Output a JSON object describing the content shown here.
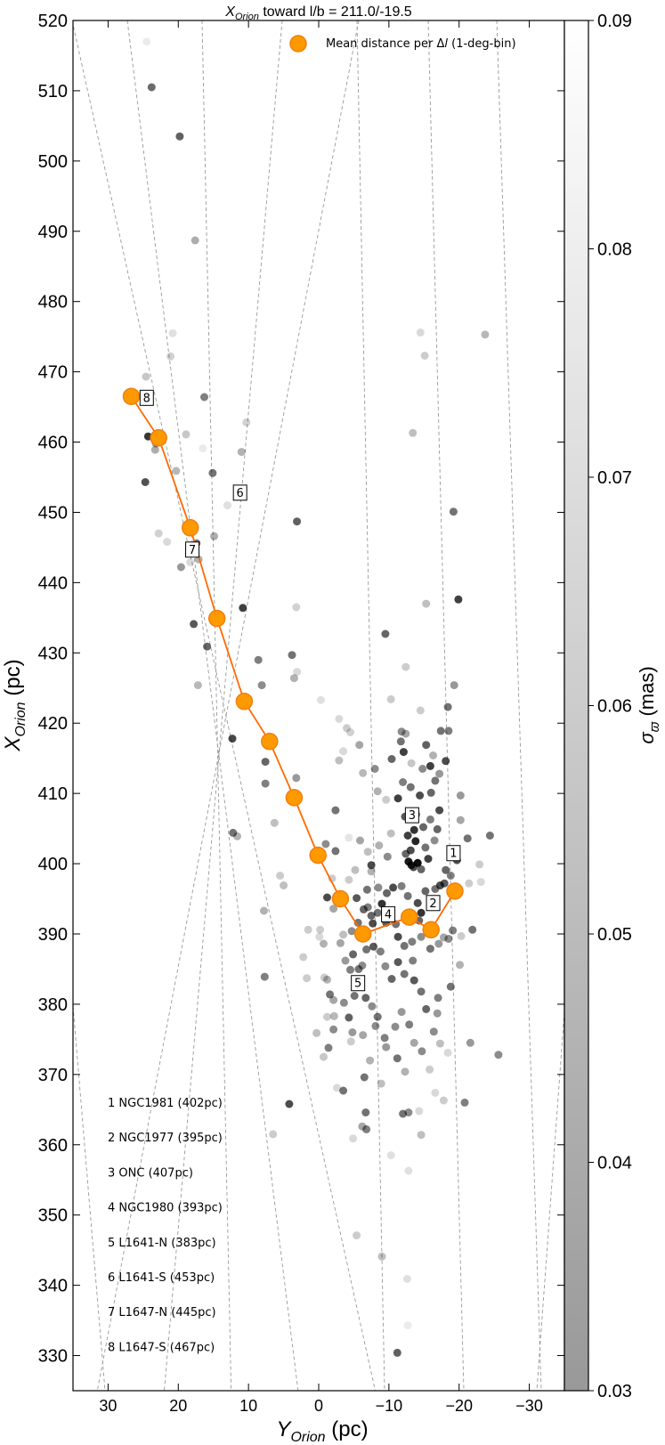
{
  "chart_data": {
    "type": "scatter",
    "title": {
      "main": "X",
      "sub": "Orion",
      "rest": " toward l/b = 211.0/-19.5"
    },
    "xlabel": {
      "main": "Y",
      "sub": "Orion",
      "rest": " (pc)"
    },
    "ylabel": {
      "main": "X",
      "sub": "Orion",
      "rest": " (pc)"
    },
    "xlim": [
      35,
      -35
    ],
    "ylim": [
      325,
      520
    ],
    "x_ticks": [
      30,
      20,
      10,
      0,
      -10,
      -20,
      -30
    ],
    "x_tick_labels": [
      "30",
      "20",
      "10",
      "0",
      "−10",
      "−20",
      "−30"
    ],
    "y_ticks": [
      330,
      340,
      350,
      360,
      370,
      380,
      390,
      400,
      410,
      420,
      430,
      440,
      450,
      460,
      470,
      480,
      490,
      500,
      510,
      520
    ],
    "y_tick_labels": [
      "330",
      "340",
      "350",
      "360",
      "370",
      "380",
      "390",
      "400",
      "410",
      "420",
      "430",
      "440",
      "450",
      "460",
      "470",
      "480",
      "490",
      "500",
      "510",
      "520"
    ],
    "colorbar": {
      "label": {
        "main": "σ",
        "sub": "ϖ",
        "rest": " (mas)"
      },
      "range": [
        0.03,
        0.09
      ],
      "ticks": [
        0.03,
        0.04,
        0.05,
        0.06,
        0.07,
        0.08,
        0.09
      ],
      "tick_labels": [
        "0.03",
        "0.04",
        "0.05",
        "0.06",
        "0.07",
        "0.08",
        "0.09"
      ]
    },
    "legend": {
      "label": {
        "pre": "Mean distance per Δ",
        "italic": "l",
        "post": " (1-deg-bin)"
      },
      "placement": "top-right",
      "color": "#ff9900",
      "edge": "#f08010"
    },
    "mean_line_color": "#ff6a00",
    "point_color": "#000000",
    "mean_distance_series": [
      {
        "x": 26.7,
        "y": 466.5
      },
      {
        "x": 22.8,
        "y": 460.6
      },
      {
        "x": 18.3,
        "y": 447.8
      },
      {
        "x": 14.5,
        "y": 434.9
      },
      {
        "x": 10.6,
        "y": 423.1
      },
      {
        "x": 7.0,
        "y": 417.4
      },
      {
        "x": 3.5,
        "y": 409.4
      },
      {
        "x": 0.1,
        "y": 401.2
      },
      {
        "x": -3.1,
        "y": 395.0
      },
      {
        "x": -6.3,
        "y": 390.0
      },
      {
        "x": -12.9,
        "y": 392.4
      },
      {
        "x": -16.0,
        "y": 390.6
      },
      {
        "x": -19.4,
        "y": 396.1
      }
    ],
    "region_markers": [
      {
        "label": "8",
        "x": 24.5,
        "y": 466.3
      },
      {
        "label": "6",
        "x": 11.2,
        "y": 452.8
      },
      {
        "label": "7",
        "x": 18.0,
        "y": 444.7
      },
      {
        "label": "3",
        "x": -13.3,
        "y": 406.9
      },
      {
        "label": "1",
        "x": -19.2,
        "y": 401.5
      },
      {
        "label": "2",
        "x": -16.3,
        "y": 394.4
      },
      {
        "label": "4",
        "x": -9.9,
        "y": 392.8
      },
      {
        "label": "5",
        "x": -5.6,
        "y": 383.0
      }
    ],
    "region_list": [
      "1 NGC1981 (402pc)",
      "2 NGC1977 (395pc)",
      "3 ONC (407pc)",
      "4 NGC1980 (393pc)",
      "5 L1641-N (383pc)",
      "6 L1641-S (453pc)",
      "7 L1647-N (445pc)",
      "8 L1647-S (467pc)"
    ],
    "stars": [
      [
        24.5,
        517,
        0.08
      ],
      [
        23.8,
        510.5,
        0.58
      ],
      [
        19.8,
        503.5,
        0.62
      ],
      [
        17.6,
        488.7,
        0.32
      ],
      [
        24.6,
        469.3,
        0.22
      ],
      [
        24.3,
        460.8,
        0.78
      ],
      [
        23.2,
        459.8,
        0.4
      ],
      [
        23.3,
        458.9,
        0.32
      ],
      [
        24.7,
        454.3,
        0.68
      ],
      [
        20.8,
        475.5,
        0.12
      ],
      [
        21.1,
        472.2,
        0.18
      ],
      [
        16.3,
        466.4,
        0.5
      ],
      [
        18.9,
        461.1,
        0.22
      ],
      [
        15.1,
        455.6,
        0.55
      ],
      [
        16.5,
        459.1,
        0.08
      ],
      [
        13.0,
        451.0,
        0.12
      ],
      [
        10.3,
        462.8,
        0.18
      ],
      [
        11.0,
        458.6,
        0.3
      ],
      [
        20.3,
        455.9,
        0.28
      ],
      [
        22.8,
        447.0,
        0.18
      ],
      [
        21.6,
        445.8,
        0.15
      ],
      [
        19.6,
        442.2,
        0.4
      ],
      [
        18.3,
        442.9,
        0.15
      ],
      [
        14.9,
        446.6,
        0.32
      ],
      [
        17.4,
        445.6,
        0.55
      ],
      [
        17.1,
        443.3,
        0.3
      ],
      [
        17.8,
        434.1,
        0.65
      ],
      [
        15.9,
        430.9,
        0.6
      ],
      [
        17.2,
        425.4,
        0.28
      ],
      [
        10.8,
        436.4,
        0.75
      ],
      [
        8.6,
        429.0,
        0.5
      ],
      [
        8.1,
        425.4,
        0.45
      ],
      [
        12.3,
        417.8,
        0.72
      ],
      [
        7.6,
        414.5,
        0.6
      ],
      [
        7.6,
        411.4,
        0.5
      ],
      [
        12.2,
        404.4,
        0.55
      ],
      [
        11.6,
        403.9,
        0.3
      ],
      [
        6.3,
        405.8,
        0.25
      ],
      [
        5.5,
        398.3,
        0.2
      ],
      [
        5.0,
        396.9,
        0.25
      ],
      [
        7.8,
        393.3,
        0.3
      ],
      [
        7.7,
        383.9,
        0.5
      ],
      [
        3.1,
        448.7,
        0.62
      ],
      [
        3.2,
        436.5,
        0.18
      ],
      [
        3.8,
        429.7,
        0.55
      ],
      [
        3.5,
        426.4,
        0.3
      ],
      [
        3.1,
        427.3,
        0.15
      ],
      [
        3.2,
        412.2,
        0.4
      ],
      [
        -0.3,
        423.3,
        0.12
      ],
      [
        -2.4,
        407.6,
        0.55
      ],
      [
        -2.9,
        420.6,
        0.15
      ],
      [
        -4.0,
        419.3,
        0.2
      ],
      [
        -2.9,
        414.7,
        0.25
      ],
      [
        -3.5,
        416.0,
        0.15
      ],
      [
        -1.0,
        402.8,
        0.45
      ],
      [
        -2.4,
        401.8,
        0.55
      ],
      [
        -1.2,
        395.2,
        0.7
      ],
      [
        -2.1,
        393.6,
        0.35
      ],
      [
        -0.2,
        390.6,
        0.2
      ],
      [
        -0.7,
        388.6,
        0.3
      ],
      [
        -0.1,
        389.6,
        0.15
      ],
      [
        -0.8,
        383.8,
        0.2
      ],
      [
        -1.2,
        383.5,
        0.3
      ],
      [
        -1.6,
        381.4,
        0.55
      ],
      [
        -2.2,
        378.3,
        0.28
      ],
      [
        -1.2,
        378.2,
        0.2
      ],
      [
        -2.1,
        376.4,
        0.45
      ],
      [
        -1.4,
        373.8,
        0.5
      ],
      [
        -0.7,
        372.5,
        0.22
      ],
      [
        -2.6,
        368.1,
        0.15
      ],
      [
        -3.5,
        367.7,
        0.55
      ],
      [
        4.2,
        365.8,
        0.7
      ],
      [
        6.5,
        361.5,
        0.2
      ],
      [
        -6.7,
        364.6,
        0.55
      ],
      [
        -6.2,
        362.6,
        0.35
      ],
      [
        -6.8,
        362.2,
        0.5
      ],
      [
        -4.9,
        360.9,
        0.15
      ],
      [
        -5.4,
        347.1,
        0.2
      ],
      [
        -9.0,
        344.1,
        0.25
      ],
      [
        -12.6,
        340.9,
        0.12
      ],
      [
        -12.7,
        334.3,
        0.08
      ],
      [
        -11.2,
        330.4,
        0.62
      ],
      [
        -9.5,
        432.7,
        0.6
      ],
      [
        -12.4,
        428.0,
        0.2
      ],
      [
        -10.3,
        423.4,
        0.2
      ],
      [
        -12.4,
        418.5,
        0.35
      ],
      [
        -11.8,
        418.8,
        0.45
      ],
      [
        -11.7,
        417.4,
        0.55
      ],
      [
        -12.1,
        415.9,
        0.75
      ],
      [
        -10.4,
        414.9,
        0.6
      ],
      [
        -8.0,
        413.5,
        0.45
      ],
      [
        -9.6,
        409.1,
        0.2
      ],
      [
        -8.4,
        410.3,
        0.3
      ],
      [
        -12.0,
        411.6,
        0.5
      ],
      [
        -11.3,
        409.3,
        0.75
      ],
      [
        -13.1,
        410.9,
        0.55
      ],
      [
        -14.4,
        409.7,
        0.7
      ],
      [
        -13.9,
        407.0,
        0.5
      ],
      [
        -12.3,
        406.7,
        0.65
      ],
      [
        -14.9,
        405.2,
        0.6
      ],
      [
        -13.6,
        404.8,
        0.8
      ],
      [
        -12.7,
        404.0,
        0.75
      ],
      [
        -13.8,
        403.2,
        0.85
      ],
      [
        -13.1,
        401.9,
        0.7
      ],
      [
        -12.4,
        401.4,
        0.6
      ],
      [
        -12.8,
        400.3,
        0.9
      ],
      [
        -13.2,
        399.8,
        0.85
      ],
      [
        -14.1,
        400.1,
        0.95
      ],
      [
        -13.5,
        399.5,
        0.7
      ],
      [
        -14.6,
        399.2,
        0.6
      ],
      [
        -15.2,
        402.3,
        0.55
      ],
      [
        -15.6,
        400.7,
        0.75
      ],
      [
        -16.5,
        403.3,
        0.45
      ],
      [
        -16.9,
        404.9,
        0.6
      ],
      [
        -15.9,
        406.3,
        0.5
      ],
      [
        -17.2,
        407.6,
        0.7
      ],
      [
        -16.0,
        410.1,
        0.6
      ],
      [
        -16.6,
        411.8,
        0.55
      ],
      [
        -17.2,
        412.8,
        0.4
      ],
      [
        -18.1,
        414.6,
        0.7
      ],
      [
        -17.4,
        418.9,
        0.55
      ],
      [
        -18.5,
        418.9,
        0.5
      ],
      [
        -18.4,
        422.3,
        0.55
      ],
      [
        -19.3,
        425.4,
        0.4
      ],
      [
        -15.3,
        416.9,
        0.62
      ],
      [
        -14.8,
        413.5,
        0.45
      ],
      [
        -16.3,
        415.4,
        0.3
      ],
      [
        -15.9,
        413.9,
        0.75
      ],
      [
        -13.2,
        414.3,
        0.22
      ],
      [
        -14.5,
        421.8,
        0.2
      ],
      [
        -15.3,
        437.0,
        0.25
      ],
      [
        -14.5,
        475.6,
        0.15
      ],
      [
        -15.1,
        472.3,
        0.2
      ],
      [
        -13.4,
        461.3,
        0.25
      ],
      [
        -23.7,
        475.3,
        0.28
      ],
      [
        -19.2,
        450.1,
        0.55
      ],
      [
        -19.9,
        437.6,
        0.75
      ],
      [
        -20.2,
        406.2,
        0.35
      ],
      [
        -20.2,
        409.7,
        0.4
      ],
      [
        -21.2,
        403.6,
        0.55
      ],
      [
        -19.7,
        400.5,
        0.7
      ],
      [
        -18.8,
        398.3,
        0.5
      ],
      [
        -18.1,
        399.1,
        0.6
      ],
      [
        -17.9,
        397.2,
        0.65
      ],
      [
        -17.3,
        396.9,
        0.7
      ],
      [
        -16.6,
        396.4,
        0.55
      ],
      [
        -15.2,
        396.1,
        0.6
      ],
      [
        -14.1,
        394.4,
        0.7
      ],
      [
        -14.6,
        393.0,
        0.8
      ],
      [
        -14.3,
        391.9,
        0.6
      ],
      [
        -12.7,
        395.4,
        0.55
      ],
      [
        -11.8,
        396.8,
        0.5
      ],
      [
        -10.6,
        396.6,
        0.7
      ],
      [
        -9.7,
        395.8,
        0.6
      ],
      [
        -8.5,
        396.6,
        0.45
      ],
      [
        -9.0,
        394.3,
        0.8
      ],
      [
        -8.4,
        393.0,
        0.55
      ],
      [
        -7.5,
        392.6,
        0.6
      ],
      [
        -7.0,
        393.8,
        0.5
      ],
      [
        -7.7,
        391.5,
        0.7
      ],
      [
        -9.6,
        391.6,
        0.65
      ],
      [
        -11.0,
        391.4,
        0.55
      ],
      [
        -11.3,
        389.6,
        0.7
      ],
      [
        -12.2,
        388.3,
        0.55
      ],
      [
        -13.3,
        388.9,
        0.5
      ],
      [
        -14.6,
        389.6,
        0.45
      ],
      [
        -15.9,
        387.9,
        0.55
      ],
      [
        -17.1,
        388.6,
        0.4
      ],
      [
        -17.8,
        389.5,
        0.35
      ],
      [
        -18.5,
        389.3,
        0.45
      ],
      [
        -19.1,
        390.5,
        0.5
      ],
      [
        -20.3,
        389.7,
        0.2
      ],
      [
        -21.9,
        390.6,
        0.55
      ],
      [
        -21.4,
        397.2,
        0.2
      ],
      [
        -23.1,
        397.4,
        0.15
      ],
      [
        -22.9,
        399.9,
        0.2
      ],
      [
        -24.4,
        404.0,
        0.55
      ],
      [
        -21.6,
        374.5,
        0.4
      ],
      [
        -20.8,
        366.0,
        0.5
      ],
      [
        -25.6,
        372.8,
        0.45
      ],
      [
        -20.1,
        385.6,
        0.3
      ],
      [
        -18.8,
        382.5,
        0.55
      ],
      [
        -17.0,
        380.9,
        0.5
      ],
      [
        -16.9,
        378.7,
        0.4
      ],
      [
        -16.4,
        376.1,
        0.45
      ],
      [
        -17.3,
        374.4,
        0.25
      ],
      [
        -18.4,
        373.1,
        0.15
      ],
      [
        -15.3,
        379.3,
        0.6
      ],
      [
        -14.6,
        381.8,
        0.55
      ],
      [
        -13.6,
        383.4,
        0.65
      ],
      [
        -13.4,
        386.2,
        0.5
      ],
      [
        -12.2,
        384.3,
        0.55
      ],
      [
        -11.3,
        386.0,
        0.65
      ],
      [
        -10.4,
        383.6,
        0.6
      ],
      [
        -9.5,
        385.4,
        0.45
      ],
      [
        -8.8,
        387.5,
        0.5
      ],
      [
        -7.8,
        388.2,
        0.65
      ],
      [
        -6.8,
        387.8,
        0.55
      ],
      [
        -6.2,
        385.5,
        0.45
      ],
      [
        -5.7,
        385.0,
        0.55
      ],
      [
        -4.9,
        387.1,
        0.6
      ],
      [
        -4.5,
        384.9,
        0.5
      ],
      [
        -3.8,
        386.2,
        0.4
      ],
      [
        -3.1,
        388.7,
        0.35
      ],
      [
        -3.5,
        389.9,
        0.25
      ],
      [
        -4.7,
        390.4,
        0.45
      ],
      [
        -5.6,
        391.6,
        0.55
      ],
      [
        -6.4,
        393.5,
        0.6
      ],
      [
        -5.4,
        395.1,
        0.65
      ],
      [
        -6.9,
        396.3,
        0.55
      ],
      [
        -7.5,
        398.9,
        0.3
      ],
      [
        -7.0,
        401.7,
        0.25
      ],
      [
        -8.6,
        402.6,
        0.3
      ],
      [
        -9.8,
        401.0,
        0.45
      ],
      [
        -10.3,
        404.3,
        0.25
      ],
      [
        -5.9,
        403.3,
        0.35
      ],
      [
        -5.2,
        399.1,
        0.25
      ],
      [
        -4.3,
        397.7,
        0.2
      ],
      [
        -7.5,
        399.8,
        0.7
      ],
      [
        -8.4,
        378.2,
        0.55
      ],
      [
        -7.6,
        379.7,
        0.45
      ],
      [
        -6.7,
        380.9,
        0.6
      ],
      [
        -5.1,
        381.2,
        0.55
      ],
      [
        -4.3,
        378.1,
        0.62
      ],
      [
        -3.6,
        380.2,
        0.45
      ],
      [
        -4.8,
        376.0,
        0.4
      ],
      [
        -6.3,
        375.6,
        0.35
      ],
      [
        -8.1,
        376.9,
        0.45
      ],
      [
        -9.4,
        375.2,
        0.5
      ],
      [
        -10.9,
        376.8,
        0.45
      ],
      [
        -11.8,
        378.9,
        0.4
      ],
      [
        -12.9,
        377.1,
        0.5
      ],
      [
        -13.6,
        374.5,
        0.35
      ],
      [
        -14.7,
        373.3,
        0.45
      ],
      [
        -11.2,
        372.3,
        0.55
      ],
      [
        -9.6,
        373.9,
        0.4
      ],
      [
        -7.3,
        372.0,
        0.3
      ],
      [
        -6.5,
        369.6,
        0.55
      ],
      [
        -8.9,
        368.7,
        0.25
      ],
      [
        -12.3,
        370.4,
        0.3
      ],
      [
        -15.8,
        370.7,
        0.2
      ],
      [
        -17.8,
        366.3,
        0.2
      ],
      [
        -16.6,
        367.4,
        0.15
      ],
      [
        -14.3,
        364.8,
        0.15
      ],
      [
        -12.8,
        364.6,
        0.45
      ],
      [
        -12.0,
        364.4,
        0.55
      ],
      [
        -10.3,
        358.5,
        0.12
      ],
      [
        -12.8,
        356.3,
        0.12
      ],
      [
        -14.6,
        361.4,
        0.25
      ],
      [
        -4.5,
        418.7,
        0.18
      ],
      [
        -5.8,
        416.9,
        0.35
      ],
      [
        -6.3,
        412.9,
        0.28
      ],
      [
        -1.9,
        397.9,
        0.2
      ],
      [
        -4.3,
        403.7,
        0.1
      ],
      [
        -4.6,
        374.7,
        0.2
      ],
      [
        -2.1,
        380.6,
        0.35
      ],
      [
        0.3,
        375.9,
        0.25
      ],
      [
        1.7,
        383.7,
        0.2
      ],
      [
        2.2,
        386.7,
        0.2
      ],
      [
        1.5,
        390.6,
        0.2
      ]
    ]
  }
}
